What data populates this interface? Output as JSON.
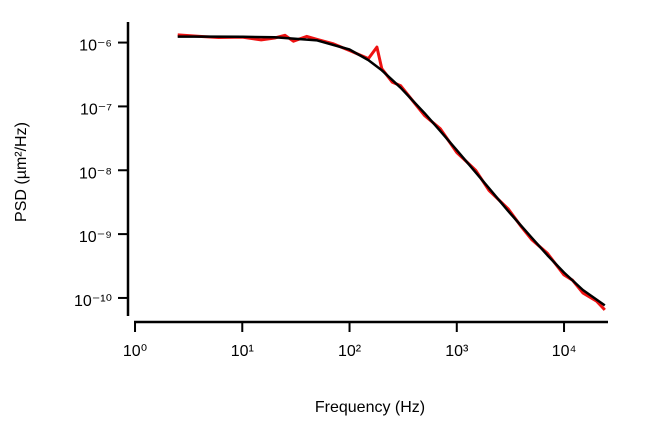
{
  "chart_data": {
    "type": "line",
    "xlabel": "Frequency (Hz)",
    "ylabel": "PSD (µm²/Hz)",
    "xscale": "log",
    "yscale": "log",
    "xlim": [
      0.86,
      25700
    ],
    "ylim": [
      4.2e-11,
      2.1e-06
    ],
    "xticks": [
      {
        "value": 1,
        "label": "10⁰"
      },
      {
        "value": 10,
        "label": "10¹"
      },
      {
        "value": 100,
        "label": "10²"
      },
      {
        "value": 1000,
        "label": "10³"
      },
      {
        "value": 10000,
        "label": "10⁴"
      }
    ],
    "yticks": [
      {
        "value": 1e-10,
        "label": "10⁻¹⁰"
      },
      {
        "value": 1e-09,
        "label": "10⁻⁹"
      },
      {
        "value": 1e-08,
        "label": "10⁻⁸"
      },
      {
        "value": 1e-07,
        "label": "10⁻⁷"
      },
      {
        "value": 1e-06,
        "label": "10⁻⁶"
      }
    ],
    "series": [
      {
        "color": "#ee1111",
        "width": 3,
        "x": [
          2.5,
          4,
          6,
          10,
          15,
          20,
          25,
          30,
          40,
          50,
          70,
          100,
          150,
          180,
          200,
          250,
          300,
          400,
          500,
          700,
          1000,
          1500,
          2000,
          3000,
          4000,
          5000,
          7000,
          10000,
          12000,
          15000,
          20000,
          24000
        ],
        "values": [
          1.32e-06,
          1.25e-06,
          1.2e-06,
          1.22e-06,
          1.1e-06,
          1.18e-06,
          1.3e-06,
          1.05e-06,
          1.25e-06,
          1.12e-06,
          9.6e-07,
          7.5e-07,
          5.6e-07,
          8.5e-07,
          3.9e-07,
          2.4e-07,
          2.1e-07,
          1.15e-07,
          7.2e-08,
          4.5e-08,
          1.9e-08,
          1e-08,
          4.8e-09,
          2.5e-09,
          1.3e-09,
          8.2e-10,
          5e-10,
          2.3e-10,
          1.9e-10,
          1.2e-10,
          9e-11,
          6.5e-11
        ]
      },
      {
        "color": "#000000",
        "width": 2.5,
        "x": [
          2.5,
          5,
          10,
          20,
          50,
          100,
          150,
          200,
          300,
          500,
          700,
          1000,
          1500,
          2000,
          3000,
          5000,
          7000,
          10000,
          15000,
          24000
        ],
        "values": [
          1.24e-06,
          1.24e-06,
          1.233e-06,
          1.211e-06,
          1.08e-06,
          7.8e-07,
          5.32e-07,
          3.68e-07,
          1.96e-07,
          7.85e-08,
          4.13e-08,
          2.06e-08,
          9.25e-09,
          5.22e-09,
          2.32e-09,
          8.78e-10,
          4.68e-10,
          2.5e-10,
          1.33e-10,
          7.64e-11
        ]
      }
    ]
  }
}
